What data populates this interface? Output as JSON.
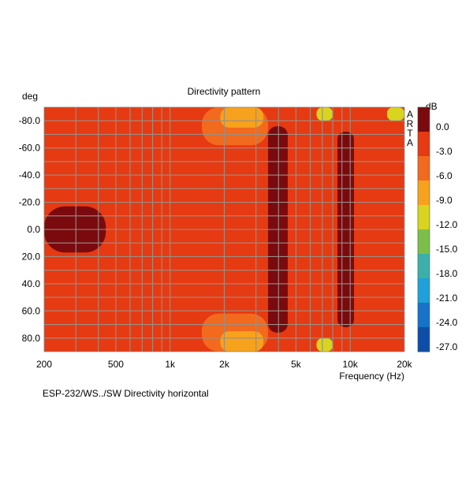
{
  "chart_data": {
    "type": "heatmap",
    "title": "Directivity pattern",
    "ylabel": "deg",
    "xlabel": "Frequency (Hz)",
    "footer": "ESP-232/WS../SW   Directivity horizontal",
    "watermark": [
      "A",
      "R",
      "T",
      "A"
    ],
    "x_scale": "log",
    "xlim": [
      200,
      20000
    ],
    "x_ticks": [
      {
        "value": 200,
        "label": "200"
      },
      {
        "value": 500,
        "label": "500"
      },
      {
        "value": 1000,
        "label": "1k"
      },
      {
        "value": 2000,
        "label": "2k"
      },
      {
        "value": 5000,
        "label": "5k"
      },
      {
        "value": 10000,
        "label": "10k"
      },
      {
        "value": 20000,
        "label": "20k"
      }
    ],
    "ylim": [
      -90,
      90
    ],
    "y_ticks": [
      {
        "value": -80,
        "label": "-80.0"
      },
      {
        "value": -60,
        "label": "-60.0"
      },
      {
        "value": -40,
        "label": "-40.0"
      },
      {
        "value": -20,
        "label": "-20.0"
      },
      {
        "value": 0,
        "label": "0.0"
      },
      {
        "value": 20,
        "label": "20.0"
      },
      {
        "value": 40,
        "label": "40.0"
      },
      {
        "value": 60,
        "label": "60.0"
      },
      {
        "value": 80,
        "label": "80.0"
      }
    ],
    "colorbar": {
      "unit": "dB",
      "levels": [
        {
          "label": "0.0",
          "color": "#7a0a0e"
        },
        {
          "label": "-3.0",
          "color": "#e63a12"
        },
        {
          "label": "-6.0",
          "color": "#f26a1e"
        },
        {
          "label": "-9.0",
          "color": "#f7a21c"
        },
        {
          "label": "-12.0",
          "color": "#d8d420"
        },
        {
          "label": "-15.0",
          "color": "#7cbf48"
        },
        {
          "label": "-18.0",
          "color": "#3cb0a8"
        },
        {
          "label": "-21.0",
          "color": "#20a0d8"
        },
        {
          "label": "-24.0",
          "color": "#1673c8"
        },
        {
          "label": "-27.0",
          "color": "#0e4ea8"
        }
      ],
      "bottom_color": "#0b3c8f"
    },
    "background_color": "#e63a12",
    "grid": true,
    "approx_regions": [
      {
        "band": "0 to -3 dB",
        "f_from": 200,
        "f_to": 440,
        "deg_from": -17,
        "deg_to": 17
      },
      {
        "band": "0 to -3 dB",
        "f_from": 3500,
        "f_to": 4500,
        "deg_from": -76,
        "deg_to": 76
      },
      {
        "band": "0 to -3 dB",
        "f_from": 8500,
        "f_to": 10500,
        "deg_from": -72,
        "deg_to": 72
      },
      {
        "band": "-6 to -9 dB",
        "f_from": 1500,
        "f_to": 3500,
        "deg_from": -90,
        "deg_to": -62
      },
      {
        "band": "-6 to -9 dB",
        "f_from": 1500,
        "f_to": 3500,
        "deg_from": 62,
        "deg_to": 90
      },
      {
        "band": "-9 to -12 dB",
        "f_from": 1900,
        "f_to": 3300,
        "deg_from": -90,
        "deg_to": -75
      },
      {
        "band": "-9 to -12 dB",
        "f_from": 1900,
        "f_to": 3300,
        "deg_from": 75,
        "deg_to": 90
      },
      {
        "band": "-12 to -15 dB",
        "f_from": 6500,
        "f_to": 8000,
        "deg_from": -90,
        "deg_to": -80
      },
      {
        "band": "-12 to -15 dB",
        "f_from": 6500,
        "f_to": 8000,
        "deg_from": 80,
        "deg_to": 90
      },
      {
        "band": "-12 to -15 dB",
        "f_from": 16000,
        "f_to": 20000,
        "deg_from": -90,
        "deg_to": -80
      }
    ]
  }
}
